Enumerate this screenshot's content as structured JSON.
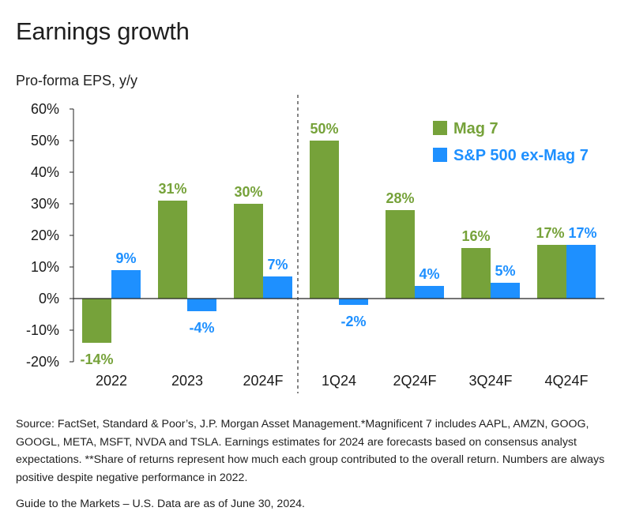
{
  "header": {
    "title": "Earnings growth",
    "subtitle": "Pro-forma EPS, y/y"
  },
  "chart_data": {
    "type": "bar",
    "title": "Earnings growth",
    "ylabel": "Pro-forma EPS, y/y",
    "xlabel": "",
    "categories": [
      "2022",
      "2023",
      "2024F",
      "1Q24",
      "2Q24F",
      "3Q24F",
      "4Q24F"
    ],
    "series": [
      {
        "name": "Mag 7",
        "color": "#76a23a",
        "values": [
          -14,
          31,
          30,
          50,
          28,
          16,
          17
        ],
        "labels": [
          "-14%",
          "31%",
          "30%",
          "50%",
          "28%",
          "16%",
          "17%"
        ]
      },
      {
        "name": "S&P 500 ex-Mag 7",
        "color": "#1e90ff",
        "values": [
          9,
          -4,
          7,
          -2,
          4,
          5,
          17
        ],
        "labels": [
          "9%",
          "-4%",
          "7%",
          "-2%",
          "4%",
          "5%",
          "17%"
        ]
      }
    ],
    "ylim": [
      -20,
      60
    ],
    "yticks": [
      -20,
      -10,
      0,
      10,
      20,
      30,
      40,
      50,
      60
    ],
    "ytick_labels": [
      "-20%",
      "-10%",
      "0%",
      "10%",
      "20%",
      "30%",
      "40%",
      "50%",
      "60%"
    ],
    "divider_after_category": "2024F",
    "legend": "top-right"
  },
  "footer": {
    "source": "Source: FactSet, Standard & Poor’s, J.P. Morgan Asset Management.*Magnificent 7 includes AAPL, AMZN, GOOG, GOOGL, META, MSFT, NVDA and TSLA. Earnings estimates for 2024 are forecasts based on consensus analyst expectations. **Share of returns represent how much each group contributed to the overall return. Numbers are always positive despite negative performance in 2022.",
    "guide": "Guide to the Markets – U.S. Data are as of June 30, 2024."
  }
}
